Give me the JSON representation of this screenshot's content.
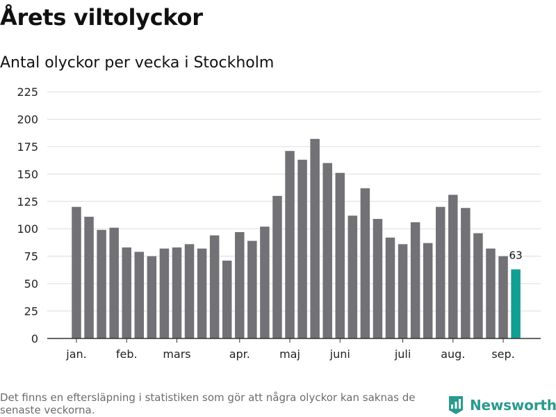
{
  "page": {
    "title": "Årets viltolyckor",
    "subtitle": "Antal olyckor per vecka i Stockholm",
    "footnote": "Det finns en eftersläpning i statistiken som gör att några olyckor kan saknas de senaste veckorna.",
    "brand": "Newsworthy"
  },
  "colors": {
    "bar": "#727176",
    "highlight": "#129e92",
    "grid": "#dcdcdc",
    "axis": "#333333",
    "brand": "#2a9a8c"
  },
  "chart_data": {
    "type": "bar",
    "title": "Årets viltolyckor",
    "subtitle": "Antal olyckor per vecka i Stockholm",
    "xlabel": "",
    "ylabel": "",
    "ylim": [
      0,
      225
    ],
    "yticks": [
      0,
      25,
      50,
      75,
      100,
      125,
      150,
      175,
      200,
      225
    ],
    "grid": true,
    "month_labels": [
      "jan.",
      "feb.",
      "mars",
      "apr.",
      "maj",
      "juni",
      "juli",
      "aug.",
      "sep."
    ],
    "month_label_bar_index": [
      0,
      4,
      8,
      13,
      17,
      21,
      26,
      30,
      34
    ],
    "values": [
      120,
      111,
      99,
      101,
      83,
      79,
      75,
      82,
      83,
      86,
      82,
      94,
      71,
      97,
      89,
      102,
      130,
      171,
      163,
      182,
      160,
      151,
      112,
      137,
      109,
      92,
      86,
      106,
      87,
      120,
      131,
      119,
      96,
      82,
      75,
      63
    ],
    "highlight_index": 35,
    "highlight_label": "63"
  }
}
